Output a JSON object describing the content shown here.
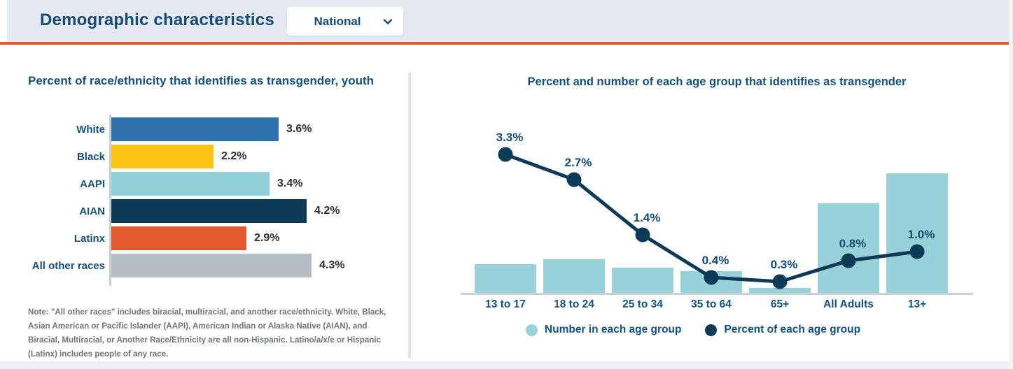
{
  "header": {
    "title": "Demographic characteristics",
    "region_dropdown": {
      "value": "National"
    }
  },
  "chart_data": [
    {
      "type": "bar",
      "orientation": "horizontal",
      "title": "Percent of race/ethnicity that identifies as transgender, youth",
      "categories": [
        "White",
        "Black",
        "AAPI",
        "AIAN",
        "Latinx",
        "All other races"
      ],
      "values": [
        3.6,
        2.2,
        3.4,
        4.2,
        2.9,
        4.3
      ],
      "value_labels": [
        "3.6%",
        "2.2%",
        "3.4%",
        "4.2%",
        "2.9%",
        "4.3%"
      ],
      "bar_colors": [
        "#2f72ab",
        "#fdc513",
        "#8fcfd6",
        "#0d3a57",
        "#e2582f",
        "#b6bcc4"
      ],
      "unit": "%",
      "xlim": [
        0,
        4.5
      ],
      "grid": false,
      "note": "Note: \"All other races\" includes biracial, multiracial, and another race/ethnicity. White, Black, Asian American or Pacific Islander (AAPI), American Indian or Alaska Native (AIAN), and Biracial, Multiracial, or Another Race/Ethnicity are all non-Hispanic. Latino/a/x/e or Hispanic (Latinx) includes people of any race."
    },
    {
      "type": "combo",
      "title": "Percent and number of each age group that identifies as transgender",
      "categories": [
        "13 to 17",
        "18 to 24",
        "25 to 34",
        "35 to 64",
        "65+",
        "All Adults",
        "13+"
      ],
      "series": [
        {
          "name": "Number in each age group",
          "type": "bar",
          "color": "#98d2d8",
          "relative_heights": [
            0.25,
            0.29,
            0.22,
            0.19,
            0.05,
            0.75,
            1.0
          ],
          "values_unlabeled": true
        },
        {
          "name": "Percent of each age group",
          "type": "line",
          "color": "#0d3a57",
          "values": [
            3.3,
            2.7,
            1.4,
            0.4,
            0.3,
            0.8,
            1.0
          ],
          "labels": [
            "3.3%",
            "2.7%",
            "1.4%",
            "0.4%",
            "0.3%",
            "0.8%",
            "1.0%"
          ]
        }
      ],
      "grid": false,
      "legend_position": "bottom"
    }
  ],
  "colors": {
    "accent_orange": "#e4582f",
    "header_bg": "#e5e9f3",
    "navy_text": "#15507c",
    "dark_navy": "#0d3a57",
    "teal": "#98d2d8"
  }
}
